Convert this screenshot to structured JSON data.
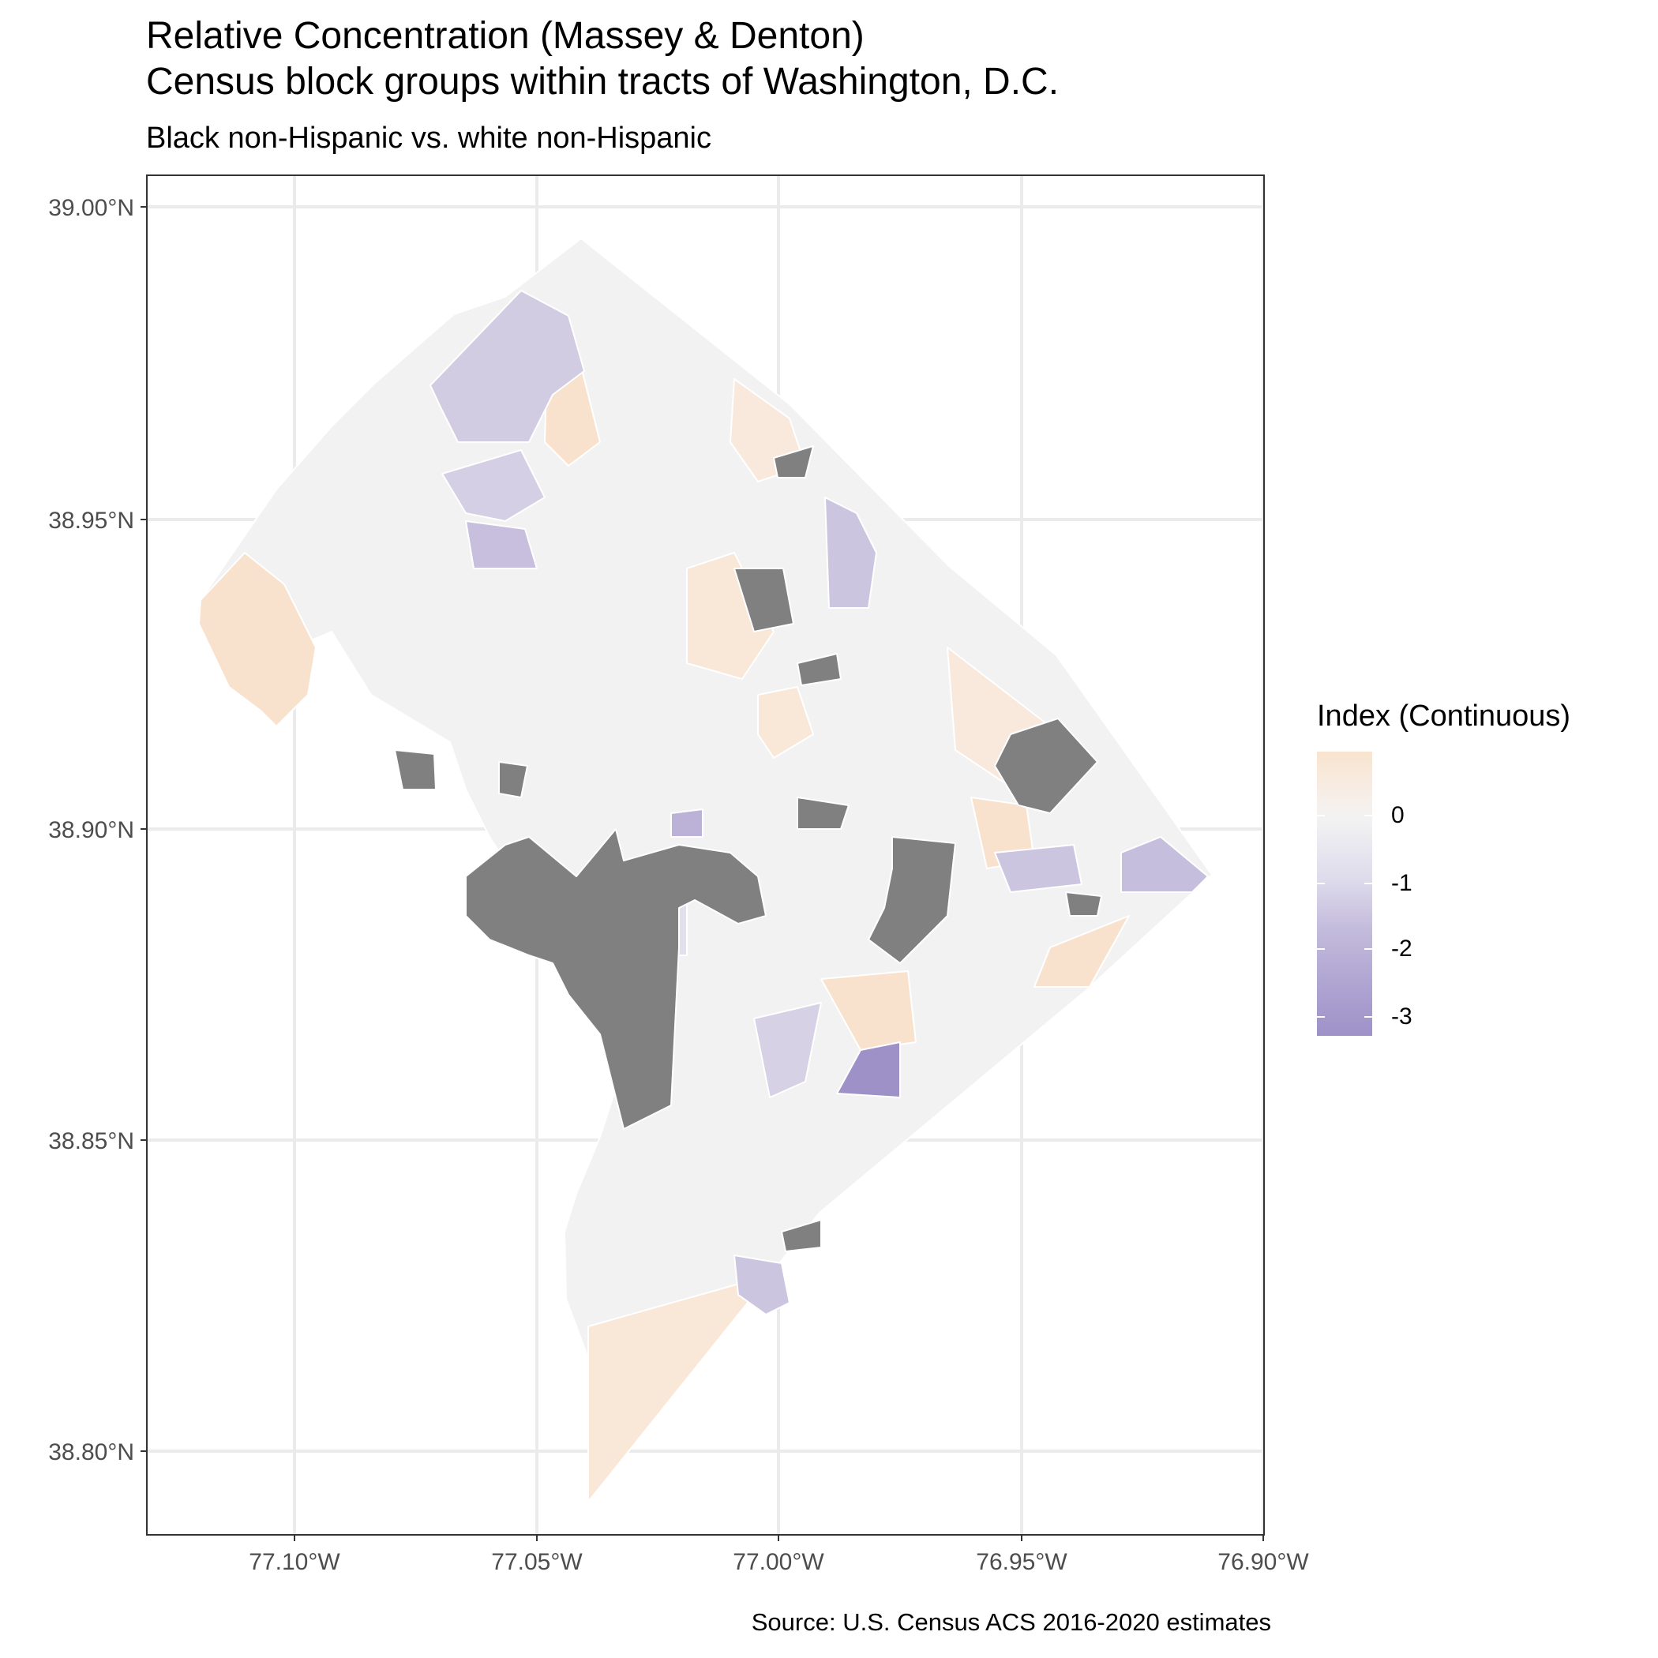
{
  "title": {
    "line1": "Relative Concentration (Massey & Denton)",
    "line2": "Census block groups within tracts of Washington, D.C."
  },
  "subtitle": "Black non-Hispanic vs. white non-Hispanic",
  "caption": "Source: U.S. Census ACS 2016-2020 estimates",
  "axes": {
    "y_labels": [
      "39.00°N",
      "38.95°N",
      "38.90°N",
      "38.85°N",
      "38.80°N"
    ],
    "x_labels": [
      "77.10°W",
      "77.05°W",
      "77.00°W",
      "76.95°W",
      "76.90°W"
    ]
  },
  "legend": {
    "title": "Index (Continuous)",
    "labels": [
      "0",
      "-1",
      "-2",
      "-3"
    ]
  },
  "colors": {
    "positive": "#f9e4cf",
    "neutral": "#f2f2f2",
    "light_negative": "#dedbec",
    "negative": "#c4bcdc",
    "strong_negative": "#9e91c8",
    "missing": "#808080",
    "grid": "#ebebeb",
    "border": "#333333"
  }
}
